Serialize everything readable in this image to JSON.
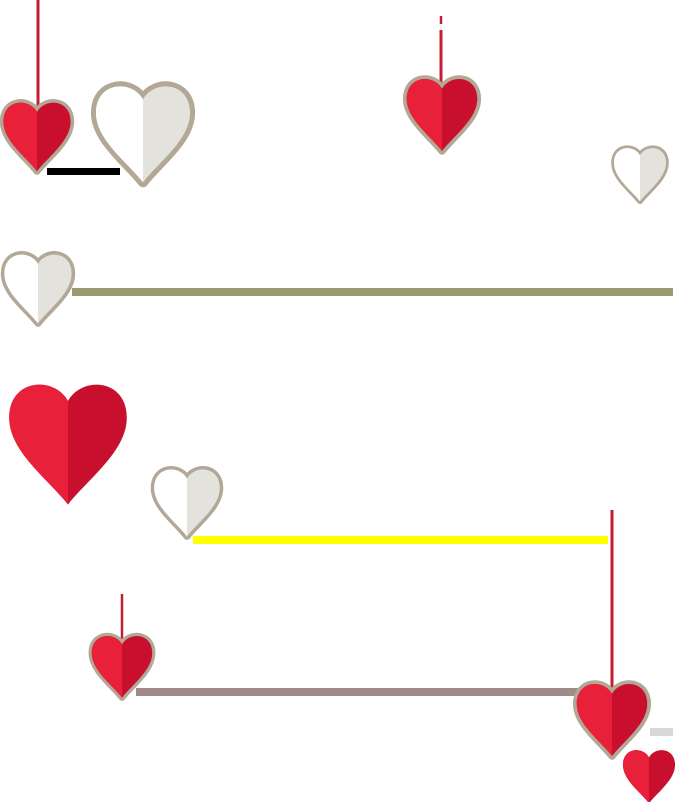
{
  "colors": {
    "background": "#ffffff",
    "red_light": "#e8203a",
    "red_dark": "#c8102e",
    "white_light": "#ffffff",
    "white_dark": "#e4e2dd",
    "heart_border": "#b3a796",
    "string": "#c41e32",
    "bar_olive": "#9a9a6e",
    "bar_yellow": "#ffff00",
    "bar_mauve": "#a08a8a",
    "bar_black": "#000000",
    "bar_gray": "#d8d8d8"
  },
  "hearts": [
    {
      "name": "heart-red-top-left",
      "style": "red",
      "bordered": true
    },
    {
      "name": "heart-white-top-left",
      "style": "white",
      "bordered": true
    },
    {
      "name": "heart-red-top-center",
      "style": "red",
      "bordered": true
    },
    {
      "name": "heart-white-top-right",
      "style": "white",
      "bordered": true
    },
    {
      "name": "heart-white-mid-left",
      "style": "white",
      "bordered": true
    },
    {
      "name": "heart-red-large-left",
      "style": "red",
      "bordered": false
    },
    {
      "name": "heart-white-center-left",
      "style": "white",
      "bordered": true
    },
    {
      "name": "heart-red-lower-left",
      "style": "red",
      "bordered": true
    },
    {
      "name": "heart-red-lower-right",
      "style": "red",
      "bordered": true
    },
    {
      "name": "heart-red-bottom-right",
      "style": "red",
      "bordered": false
    }
  ],
  "strings": [
    {
      "name": "string-top-left",
      "color": "string"
    },
    {
      "name": "string-top-center",
      "color": "string"
    },
    {
      "name": "string-top-center-dot",
      "color": "string"
    },
    {
      "name": "string-lower-left",
      "color": "string"
    },
    {
      "name": "string-lower-right",
      "color": "string"
    }
  ],
  "bars": [
    {
      "name": "bar-black",
      "color": "bar_black"
    },
    {
      "name": "bar-olive",
      "color": "bar_olive"
    },
    {
      "name": "bar-yellow",
      "color": "bar_yellow"
    },
    {
      "name": "bar-mauve",
      "color": "bar_mauve"
    },
    {
      "name": "bar-gray",
      "color": "bar_gray"
    }
  ]
}
